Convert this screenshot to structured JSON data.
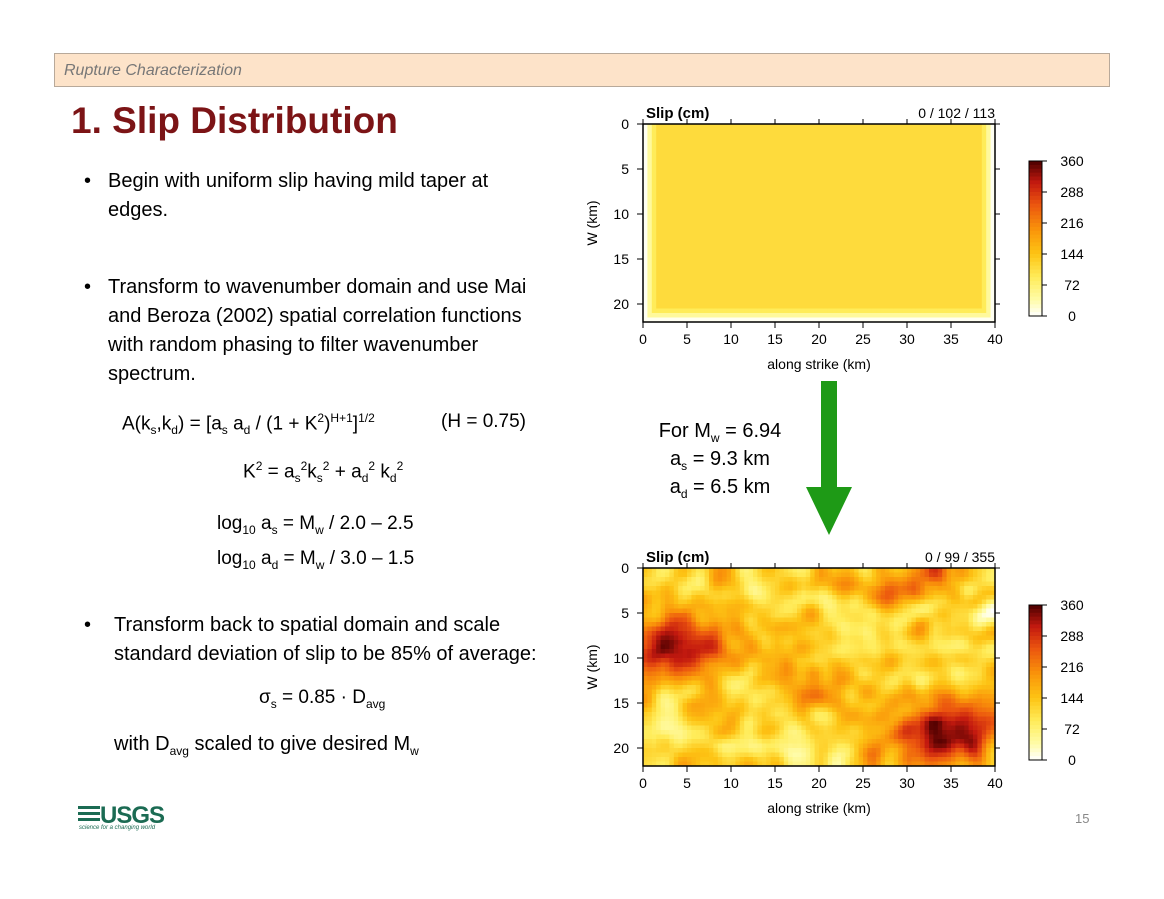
{
  "header": {
    "section": "Rupture Characterization"
  },
  "title": "1. Slip Distribution",
  "bullets": [
    {
      "marker": "•",
      "lines": [
        "Begin with uniform slip having mild taper at",
        "edges."
      ]
    },
    {
      "marker": "•",
      "lines": [
        "Transform to wavenumber domain and use Mai",
        "and Beroza (2002) spatial correlation functions",
        "with random phasing to filter wavenumber",
        "spectrum."
      ]
    },
    {
      "marker": "•",
      "lines": [
        "Transform back to spatial domain and scale",
        "standard deviation of slip to be 85% of average:"
      ]
    }
  ],
  "formulas": {
    "corr": {
      "a": "A(k",
      "a_s": "s",
      "b": ",k",
      "b_d": "d",
      "c": ") = [a",
      "c_s": "s",
      "d": " a",
      "d_d": "d",
      "e": " / (1 + K",
      "e_sup": "2",
      "f": ")",
      "f_sup": "H+1",
      "g": "]",
      "g_sup": "1/2",
      "h": "(H = 0.75)"
    },
    "k2": {
      "a": "K",
      "a_sup": "2",
      "b": " = a",
      "b_sub": "s",
      "b_sup": "2",
      "c": "k",
      "c_sub": "s",
      "c_sup": "2",
      "d": " + a",
      "d_sub": "d",
      "d_sup": "2",
      "e": " k",
      "e_sub": "d",
      "e_sup": "2"
    },
    "log_as": {
      "a": "log",
      "a_sub": "10",
      "b": " a",
      "b_sub": "s",
      "c": " = M",
      "c_sub": "w",
      "d": " / 2.0 – 2.5"
    },
    "log_ad": {
      "a": "log",
      "a_sub": "10",
      "b": " a",
      "b_sub": "d",
      "c": " = M",
      "c_sub": "w",
      "d": " / 3.0 – 1.5"
    },
    "sigma": {
      "a": "σ",
      "a_sub": "s",
      "b": " = 0.85 · D",
      "b_sub": "avg"
    },
    "with": {
      "a": "with D",
      "a_sub": "avg",
      "b": " scaled to give desired M",
      "b_sub": "w"
    }
  },
  "params": {
    "mw": {
      "a": "For M",
      "a_sub": "w",
      "b": " = 6.94"
    },
    "as": {
      "a": "a",
      "a_sub": "s",
      "b": " = 9.3 km"
    },
    "ad": {
      "a": "a",
      "a_sub": "d",
      "b": " = 6.5 km"
    }
  },
  "arrow_color": "#1e9a16",
  "charts_common": {
    "xlabel": "along strike (km)",
    "ylabel": "W (km)",
    "xticks": [
      0,
      5,
      10,
      15,
      20,
      25,
      30,
      35,
      40
    ],
    "yticks": [
      0,
      5,
      10,
      15,
      20
    ],
    "xlim": [
      0,
      40
    ],
    "ylim": [
      0,
      22
    ],
    "colorbar_ticks": [
      360,
      288,
      216,
      144,
      72,
      0
    ],
    "colorbar_range": [
      0,
      360
    ]
  },
  "chart_data": [
    {
      "type": "heatmap",
      "title": "Slip (cm)",
      "stats": "0 / 102 / 113",
      "description_values": {
        "min": 0,
        "mean": 102,
        "max": 113
      },
      "pattern": "uniform-tapered"
    },
    {
      "type": "heatmap",
      "title": "Slip (cm)",
      "stats": "0 / 99 / 355",
      "description_values": {
        "min": 0,
        "mean": 99,
        "max": 355
      },
      "pattern": "random-heterogeneous"
    }
  ],
  "page_number": "15",
  "logo": {
    "name": "USGS",
    "tagline": "science for a changing world"
  }
}
